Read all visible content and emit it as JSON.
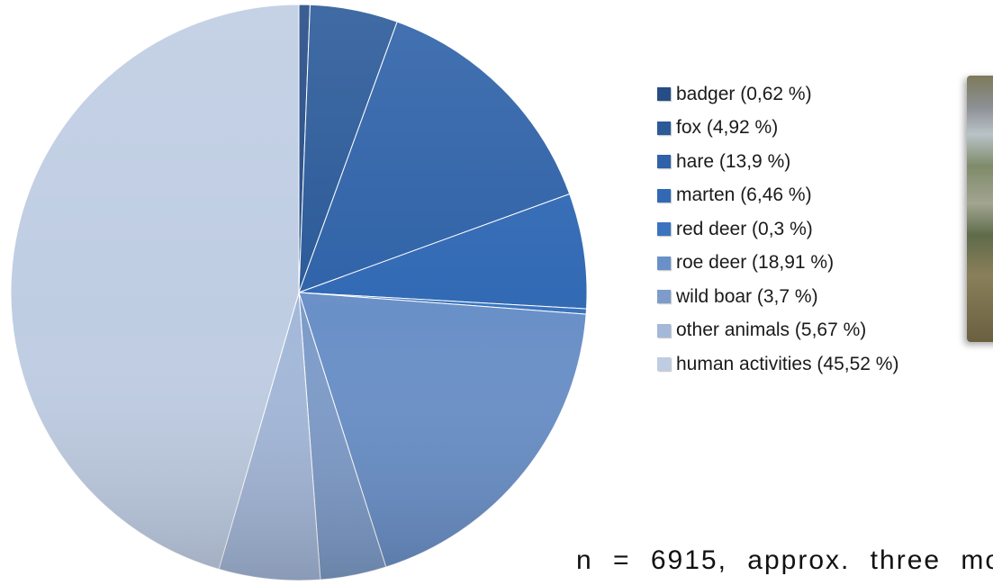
{
  "chart_data": {
    "type": "pie",
    "title": "",
    "start_angle_deg": 0,
    "direction": "clockwise",
    "legend_position": "right",
    "slices": [
      {
        "name": "badger",
        "value": 0.62,
        "label": "badger (0,62 %)",
        "color": "#264d86"
      },
      {
        "name": "fox",
        "value": 4.92,
        "label": "fox (4,92 %)",
        "color": "#2b5a99"
      },
      {
        "name": "hare",
        "value": 13.9,
        "label": "hare (13,9 %)",
        "color": "#2f62a8"
      },
      {
        "name": "marten",
        "value": 6.46,
        "label": "marten (6,46 %)",
        "color": "#3169b4"
      },
      {
        "name": "red deer",
        "value": 0.3,
        "label": "red deer (0,3 %)",
        "color": "#3a74be"
      },
      {
        "name": "roe deer",
        "value": 18.91,
        "label": "roe deer (18,91 %)",
        "color": "#6a90c8"
      },
      {
        "name": "wild boar",
        "value": 3.7,
        "label": "wild boar (3,7 %)",
        "color": "#7e9cc9"
      },
      {
        "name": "other animals",
        "value": 5.67,
        "label": "other animals (5,67 %)",
        "color": "#a4b8d9"
      },
      {
        "name": "human activities",
        "value": 45.52,
        "label": "human activities (45,52 %)",
        "color": "#bfcde3"
      }
    ]
  },
  "note": {
    "text": "n = 6915, approx. three mo"
  },
  "photo": {
    "icon": "photo-thumbnail"
  }
}
